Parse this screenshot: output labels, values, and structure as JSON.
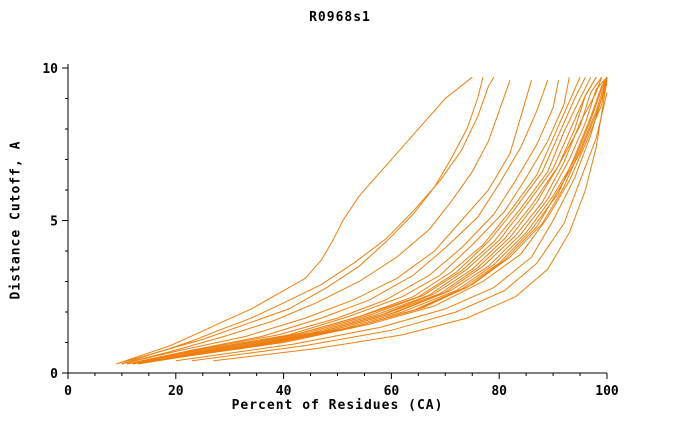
{
  "title": "R0968s1",
  "chart_data": {
    "type": "line",
    "title": "R0968s1",
    "xlabel": "Percent of Residues (CA)",
    "ylabel": "Distance Cutoff, A",
    "xlim": [
      0,
      100
    ],
    "ylim": [
      0,
      10
    ],
    "xticks": [
      0,
      20,
      40,
      60,
      80,
      100
    ],
    "yticks": [
      0,
      5,
      10
    ],
    "x_minor_step": 5,
    "y_minor_step": 1,
    "grid": false,
    "legend": "none",
    "line_color": "#ee7f0e",
    "series": [
      [
        [
          9,
          0.3
        ],
        [
          14,
          0.6
        ],
        [
          19,
          0.9
        ],
        [
          24,
          1.3
        ],
        [
          29,
          1.7
        ],
        [
          34,
          2.1
        ],
        [
          39,
          2.6
        ],
        [
          44,
          3.1
        ],
        [
          47,
          3.7
        ],
        [
          49,
          4.3
        ],
        [
          51,
          5.0
        ],
        [
          54,
          5.8
        ],
        [
          58,
          6.6
        ],
        [
          62,
          7.4
        ],
        [
          66,
          8.2
        ],
        [
          70,
          9.0
        ],
        [
          75,
          9.7
        ]
      ],
      [
        [
          10,
          0.3
        ],
        [
          17,
          0.7
        ],
        [
          25,
          1.1
        ],
        [
          33,
          1.6
        ],
        [
          41,
          2.1
        ],
        [
          48,
          2.8
        ],
        [
          54,
          3.5
        ],
        [
          59,
          4.3
        ],
        [
          64,
          5.2
        ],
        [
          68,
          6.1
        ],
        [
          71,
          7.0
        ],
        [
          74,
          8.0
        ],
        [
          76,
          9.0
        ],
        [
          77,
          9.7
        ]
      ],
      [
        [
          10,
          0.3
        ],
        [
          19,
          0.7
        ],
        [
          29,
          1.2
        ],
        [
          38,
          1.7
        ],
        [
          46,
          2.3
        ],
        [
          54,
          3.0
        ],
        [
          61,
          3.8
        ],
        [
          67,
          4.7
        ],
        [
          71,
          5.6
        ],
        [
          75,
          6.6
        ],
        [
          78,
          7.6
        ],
        [
          80,
          8.6
        ],
        [
          82,
          9.6
        ]
      ],
      [
        [
          10,
          0.3
        ],
        [
          21,
          0.75
        ],
        [
          33,
          1.2
        ],
        [
          44,
          1.8
        ],
        [
          53,
          2.4
        ],
        [
          61,
          3.1
        ],
        [
          68,
          4.0
        ],
        [
          73,
          5.0
        ],
        [
          78,
          6.0
        ],
        [
          82,
          7.2
        ],
        [
          84,
          8.4
        ],
        [
          86,
          9.6
        ]
      ],
      [
        [
          11,
          0.3
        ],
        [
          23,
          0.75
        ],
        [
          36,
          1.2
        ],
        [
          47,
          1.8
        ],
        [
          56,
          2.4
        ],
        [
          64,
          3.2
        ],
        [
          70,
          4.1
        ],
        [
          76,
          5.1
        ],
        [
          80,
          6.2
        ],
        [
          84,
          7.4
        ],
        [
          87,
          8.6
        ],
        [
          89,
          9.6
        ]
      ],
      [
        [
          11,
          0.3
        ],
        [
          25,
          0.8
        ],
        [
          39,
          1.25
        ],
        [
          50,
          1.8
        ],
        [
          59,
          2.4
        ],
        [
          67,
          3.2
        ],
        [
          73,
          4.1
        ],
        [
          79,
          5.2
        ],
        [
          83,
          6.3
        ],
        [
          87,
          7.5
        ],
        [
          90,
          8.7
        ],
        [
          91,
          9.6
        ]
      ],
      [
        [
          11,
          0.3
        ],
        [
          26,
          0.8
        ],
        [
          41,
          1.25
        ],
        [
          52,
          1.85
        ],
        [
          62,
          2.5
        ],
        [
          69,
          3.2
        ],
        [
          75,
          4.2
        ],
        [
          81,
          5.3
        ],
        [
          85,
          6.4
        ],
        [
          89,
          7.6
        ],
        [
          92,
          8.8
        ],
        [
          93,
          9.7
        ]
      ],
      [
        [
          12,
          0.3
        ],
        [
          27,
          0.8
        ],
        [
          42,
          1.25
        ],
        [
          54,
          1.85
        ],
        [
          64,
          2.5
        ],
        [
          71,
          3.3
        ],
        [
          77,
          4.2
        ],
        [
          82,
          5.3
        ],
        [
          87,
          6.5
        ],
        [
          90,
          7.7
        ],
        [
          93,
          8.9
        ],
        [
          95,
          9.7
        ]
      ],
      [
        [
          12,
          0.3
        ],
        [
          28,
          0.8
        ],
        [
          43,
          1.3
        ],
        [
          55,
          1.9
        ],
        [
          65,
          2.5
        ],
        [
          72,
          3.3
        ],
        [
          78,
          4.3
        ],
        [
          83,
          5.4
        ],
        [
          88,
          6.6
        ],
        [
          91,
          7.8
        ],
        [
          94,
          9.0
        ],
        [
          96,
          9.7
        ]
      ],
      [
        [
          12,
          0.3
        ],
        [
          29,
          0.8
        ],
        [
          44,
          1.3
        ],
        [
          56,
          1.9
        ],
        [
          66,
          2.55
        ],
        [
          73,
          3.35
        ],
        [
          79,
          4.3
        ],
        [
          84,
          5.4
        ],
        [
          89,
          6.6
        ],
        [
          92,
          7.9
        ],
        [
          95,
          9.0
        ],
        [
          97,
          9.7
        ]
      ],
      [
        [
          13,
          0.3
        ],
        [
          30,
          0.8
        ],
        [
          45,
          1.3
        ],
        [
          57,
          1.9
        ],
        [
          67,
          2.55
        ],
        [
          74,
          3.4
        ],
        [
          80,
          4.35
        ],
        [
          85,
          5.5
        ],
        [
          90,
          6.7
        ],
        [
          93,
          7.9
        ],
        [
          96,
          9.1
        ],
        [
          98,
          9.7
        ]
      ],
      [
        [
          13,
          0.3
        ],
        [
          31,
          0.8
        ],
        [
          46,
          1.3
        ],
        [
          58,
          1.9
        ],
        [
          68,
          2.6
        ],
        [
          75,
          3.4
        ],
        [
          81,
          4.4
        ],
        [
          86,
          5.5
        ],
        [
          91,
          6.8
        ],
        [
          94,
          8.0
        ],
        [
          96,
          9.1
        ],
        [
          98,
          9.7
        ]
      ],
      [
        [
          13,
          0.35
        ],
        [
          32,
          0.85
        ],
        [
          47,
          1.35
        ],
        [
          59,
          1.95
        ],
        [
          69,
          2.6
        ],
        [
          76,
          3.45
        ],
        [
          82,
          4.45
        ],
        [
          87,
          5.6
        ],
        [
          91,
          6.8
        ],
        [
          95,
          8.1
        ],
        [
          97,
          9.2
        ],
        [
          99,
          9.7
        ]
      ],
      [
        [
          14,
          0.35
        ],
        [
          33,
          0.85
        ],
        [
          48,
          1.35
        ],
        [
          60,
          1.95
        ],
        [
          70,
          2.65
        ],
        [
          77,
          3.5
        ],
        [
          83,
          4.5
        ],
        [
          88,
          5.6
        ],
        [
          92,
          6.9
        ],
        [
          95,
          8.2
        ],
        [
          98,
          9.2
        ],
        [
          99,
          9.7
        ]
      ],
      [
        [
          14,
          0.35
        ],
        [
          34,
          0.85
        ],
        [
          49,
          1.4
        ],
        [
          61,
          2.0
        ],
        [
          71,
          2.7
        ],
        [
          78,
          3.5
        ],
        [
          84,
          4.55
        ],
        [
          89,
          5.7
        ],
        [
          93,
          7.0
        ],
        [
          96,
          8.2
        ],
        [
          98,
          9.3
        ],
        [
          100,
          9.7
        ]
      ],
      [
        [
          14,
          0.4
        ],
        [
          35,
          0.9
        ],
        [
          50,
          1.4
        ],
        [
          62,
          2.0
        ],
        [
          72,
          2.7
        ],
        [
          79,
          3.55
        ],
        [
          85,
          4.6
        ],
        [
          90,
          5.8
        ],
        [
          94,
          7.0
        ],
        [
          97,
          8.3
        ],
        [
          99,
          9.3
        ],
        [
          100,
          9.7
        ]
      ],
      [
        [
          15,
          0.4
        ],
        [
          36,
          0.9
        ],
        [
          52,
          1.45
        ],
        [
          64,
          2.05
        ],
        [
          73,
          2.75
        ],
        [
          80,
          3.6
        ],
        [
          86,
          4.7
        ],
        [
          91,
          5.9
        ],
        [
          94,
          7.1
        ],
        [
          97,
          8.4
        ],
        [
          99,
          9.4
        ],
        [
          100,
          9.7
        ]
      ],
      [
        [
          15,
          0.4
        ],
        [
          37,
          0.95
        ],
        [
          53,
          1.5
        ],
        [
          65,
          2.1
        ],
        [
          74,
          2.8
        ],
        [
          81,
          3.7
        ],
        [
          87,
          4.8
        ],
        [
          91,
          6.0
        ],
        [
          95,
          7.2
        ],
        [
          98,
          8.5
        ],
        [
          100,
          9.5
        ]
      ],
      [
        [
          16,
          0.45
        ],
        [
          38,
          1.0
        ],
        [
          54,
          1.55
        ],
        [
          66,
          2.15
        ],
        [
          75,
          2.9
        ],
        [
          82,
          3.8
        ],
        [
          88,
          4.9
        ],
        [
          92,
          6.1
        ],
        [
          95,
          7.3
        ],
        [
          98,
          8.6
        ],
        [
          100,
          9.7
        ]
      ],
      [
        [
          17,
          0.45
        ],
        [
          40,
          1.0
        ],
        [
          56,
          1.6
        ],
        [
          68,
          2.2
        ],
        [
          77,
          3.0
        ],
        [
          84,
          3.9
        ],
        [
          89,
          5.1
        ],
        [
          93,
          6.3
        ],
        [
          96,
          7.5
        ],
        [
          99,
          8.8
        ],
        [
          100,
          9.7
        ]
      ],
      [
        [
          20,
          0.4
        ],
        [
          42,
          0.95
        ],
        [
          58,
          1.5
        ],
        [
          70,
          2.1
        ],
        [
          79,
          2.8
        ],
        [
          86,
          3.8
        ],
        [
          90,
          5.0
        ],
        [
          94,
          6.4
        ],
        [
          97,
          7.8
        ],
        [
          99,
          9.0
        ],
        [
          100,
          9.7
        ]
      ],
      [
        [
          23,
          0.4
        ],
        [
          44,
          0.9
        ],
        [
          60,
          1.4
        ],
        [
          72,
          2.0
        ],
        [
          81,
          2.7
        ],
        [
          87,
          3.6
        ],
        [
          92,
          4.9
        ],
        [
          95,
          6.3
        ],
        [
          98,
          7.7
        ],
        [
          100,
          9.2
        ]
      ],
      [
        [
          27,
          0.4
        ],
        [
          46,
          0.8
        ],
        [
          62,
          1.25
        ],
        [
          74,
          1.8
        ],
        [
          83,
          2.5
        ],
        [
          89,
          3.4
        ],
        [
          93,
          4.6
        ],
        [
          96,
          6.0
        ],
        [
          98,
          7.4
        ],
        [
          99,
          8.5
        ],
        [
          100,
          9.6
        ]
      ],
      [
        [
          9,
          0.3
        ],
        [
          13,
          0.5
        ],
        [
          18,
          0.75
        ],
        [
          23,
          1.05
        ],
        [
          28,
          1.4
        ],
        [
          34,
          1.8
        ],
        [
          40,
          2.3
        ],
        [
          47,
          2.9
        ],
        [
          53,
          3.6
        ],
        [
          59,
          4.4
        ],
        [
          64,
          5.3
        ],
        [
          69,
          6.3
        ],
        [
          73,
          7.3
        ],
        [
          76,
          8.4
        ],
        [
          78,
          9.4
        ],
        [
          79,
          9.7
        ]
      ]
    ]
  }
}
